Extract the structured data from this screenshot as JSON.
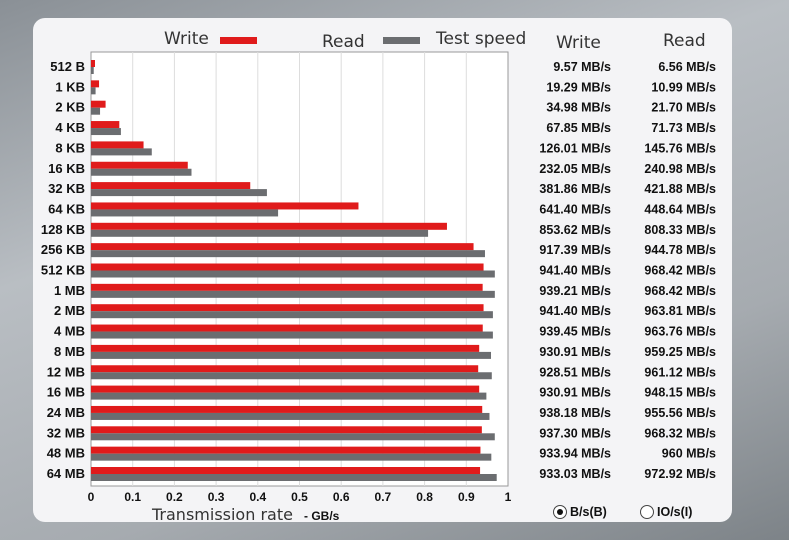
{
  "chart_data": {
    "type": "bar",
    "orientation": "horizontal",
    "categories": [
      "512 B",
      "1 KB",
      "2 KB",
      "4 KB",
      "8 KB",
      "16 KB",
      "32 KB",
      "64 KB",
      "128 KB",
      "256 KB",
      "512 KB",
      "1 MB",
      "2 MB",
      "4 MB",
      "8 MB",
      "12 MB",
      "16 MB",
      "24 MB",
      "32 MB",
      "48 MB",
      "64 MB"
    ],
    "series": [
      {
        "name": "Write",
        "color": "#e01b1b",
        "values": [
          0.00957,
          0.01929,
          0.03498,
          0.06785,
          0.12601,
          0.23205,
          0.38186,
          0.6414,
          0.85362,
          0.91739,
          0.9414,
          0.93921,
          0.9414,
          0.93945,
          0.93091,
          0.92851,
          0.93091,
          0.93818,
          0.9373,
          0.93394,
          0.93303
        ]
      },
      {
        "name": "Read",
        "color": "#6b6d70",
        "values": [
          0.00656,
          0.01099,
          0.0217,
          0.07173,
          0.14576,
          0.24098,
          0.42188,
          0.44864,
          0.80833,
          0.94478,
          0.96842,
          0.96842,
          0.96381,
          0.96376,
          0.95925,
          0.96112,
          0.94815,
          0.95556,
          0.96832,
          0.96,
          0.97292
        ]
      }
    ],
    "legend_title": "Test speed",
    "xlabel": "Transmission rate",
    "xunit": "- GB/s",
    "xlim": [
      0,
      1
    ],
    "xticks": [
      "0",
      "0.1",
      "0.2",
      "0.3",
      "0.4",
      "0.5",
      "0.6",
      "0.7",
      "0.8",
      "0.9",
      "1"
    ],
    "grid": true,
    "legend": "top"
  },
  "table": {
    "write_header": "Write",
    "read_header": "Read",
    "write": [
      "9.57 MB/s",
      "19.29 MB/s",
      "34.98 MB/s",
      "67.85 MB/s",
      "126.01 MB/s",
      "232.05 MB/s",
      "381.86 MB/s",
      "641.40 MB/s",
      "853.62 MB/s",
      "917.39 MB/s",
      "941.40 MB/s",
      "939.21 MB/s",
      "941.40 MB/s",
      "939.45 MB/s",
      "930.91 MB/s",
      "928.51 MB/s",
      "930.91 MB/s",
      "938.18 MB/s",
      "937.30 MB/s",
      "933.94 MB/s",
      "933.03 MB/s"
    ],
    "read": [
      "6.56 MB/s",
      "10.99 MB/s",
      "21.70 MB/s",
      "71.73 MB/s",
      "145.76 MB/s",
      "240.98 MB/s",
      "421.88 MB/s",
      "448.64 MB/s",
      "808.33 MB/s",
      "944.78 MB/s",
      "968.42 MB/s",
      "968.42 MB/s",
      "963.81 MB/s",
      "963.76 MB/s",
      "959.25 MB/s",
      "961.12 MB/s",
      "948.15 MB/s",
      "955.56 MB/s",
      "968.32 MB/s",
      "960 MB/s",
      "972.92 MB/s"
    ]
  },
  "units": {
    "bytes_label": "B/s(B)",
    "io_label": "IO/s(I)",
    "selected": "bytes"
  }
}
